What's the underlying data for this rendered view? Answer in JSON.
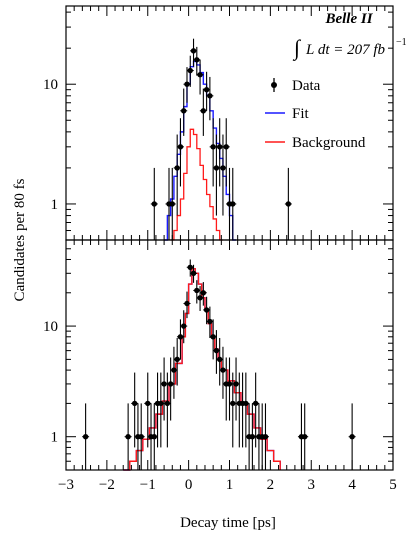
{
  "chart_data": [
    {
      "type": "step",
      "panel": "top",
      "yscale": "log",
      "xlim": [
        -3,
        5
      ],
      "ylim": [
        0.5,
        45
      ],
      "yticks": [
        {
          "v": 1,
          "label": "1"
        },
        {
          "v": 10,
          "label": "10"
        }
      ],
      "experiment": "Belle II",
      "lumi": {
        "integral": "∫",
        "body": "L dt = 207 fb",
        "sup": "−1"
      },
      "legend": [
        {
          "label": "Data",
          "color": "#000000",
          "kind": "marker"
        },
        {
          "label": "Fit",
          "color": "#1a1aff",
          "kind": "line"
        },
        {
          "label": "Background",
          "color": "#ff1a1a",
          "kind": "line"
        }
      ],
      "data_points": [
        {
          "x": -0.84,
          "y": 1.0,
          "lo": 0.5,
          "hi": 2.0
        },
        {
          "x": -0.48,
          "y": 1.0,
          "lo": 0.5,
          "hi": 2.0
        },
        {
          "x": -0.4,
          "y": 1.0,
          "lo": 0.5,
          "hi": 2.0
        },
        {
          "x": -0.28,
          "y": 2.0,
          "lo": 0.8,
          "hi": 3.8
        },
        {
          "x": -0.2,
          "y": 3.0,
          "lo": 1.4,
          "hi": 5.2
        },
        {
          "x": -0.12,
          "y": 6.0,
          "lo": 3.7,
          "hi": 9.2
        },
        {
          "x": -0.04,
          "y": 10.0,
          "lo": 7.0,
          "hi": 13.9
        },
        {
          "x": 0.04,
          "y": 13.0,
          "lo": 9.5,
          "hi": 17.3
        },
        {
          "x": 0.12,
          "y": 19.0,
          "lo": 14.0,
          "hi": 24.0
        },
        {
          "x": 0.2,
          "y": 16.0,
          "lo": 11.8,
          "hi": 20.5
        },
        {
          "x": 0.28,
          "y": 12.0,
          "lo": 8.2,
          "hi": 16.0
        },
        {
          "x": 0.36,
          "y": 6.0,
          "lo": 3.7,
          "hi": 9.2
        },
        {
          "x": 0.44,
          "y": 9.0,
          "lo": 6.0,
          "hi": 12.7
        },
        {
          "x": 0.52,
          "y": 8.0,
          "lo": 5.0,
          "hi": 11.5
        },
        {
          "x": 0.6,
          "y": 3.0,
          "lo": 1.4,
          "hi": 5.2
        },
        {
          "x": 0.68,
          "y": 2.0,
          "lo": 0.8,
          "hi": 3.8
        },
        {
          "x": 0.76,
          "y": 3.0,
          "lo": 1.4,
          "hi": 5.2
        },
        {
          "x": 0.84,
          "y": 2.0,
          "lo": 0.8,
          "hi": 3.8
        },
        {
          "x": 0.92,
          "y": 3.0,
          "lo": 1.4,
          "hi": 5.2
        },
        {
          "x": 1.0,
          "y": 1.0,
          "lo": 0.5,
          "hi": 2.0
        },
        {
          "x": 1.08,
          "y": 1.0,
          "lo": 0.5,
          "hi": 2.0
        },
        {
          "x": 2.44,
          "y": 1.0,
          "lo": 0.5,
          "hi": 2.0
        }
      ],
      "fit_steps": [
        {
          "x0": -0.6,
          "y": 0.5
        },
        {
          "x0": -0.52,
          "y": 0.8
        },
        {
          "x0": -0.44,
          "y": 1.1
        },
        {
          "x0": -0.36,
          "y": 1.7
        },
        {
          "x0": -0.28,
          "y": 2.6
        },
        {
          "x0": -0.2,
          "y": 4.0
        },
        {
          "x0": -0.12,
          "y": 6.5
        },
        {
          "x0": -0.04,
          "y": 10.0
        },
        {
          "x0": 0.04,
          "y": 14.0
        },
        {
          "x0": 0.12,
          "y": 15.5
        },
        {
          "x0": 0.2,
          "y": 14.5
        },
        {
          "x0": 0.28,
          "y": 12.5
        },
        {
          "x0": 0.36,
          "y": 10.0
        },
        {
          "x0": 0.44,
          "y": 8.0
        },
        {
          "x0": 0.52,
          "y": 6.0
        },
        {
          "x0": 0.6,
          "y": 4.3
        },
        {
          "x0": 0.68,
          "y": 3.2
        },
        {
          "x0": 0.76,
          "y": 2.4
        },
        {
          "x0": 0.84,
          "y": 1.7
        },
        {
          "x0": 0.92,
          "y": 1.2
        },
        {
          "x0": 1.0,
          "y": 0.8
        },
        {
          "x0": 1.08,
          "y": 0.5
        }
      ],
      "fit_end": 1.16,
      "bkg_steps": [
        {
          "x0": -0.44,
          "y": 0.5
        },
        {
          "x0": -0.36,
          "y": 0.6
        },
        {
          "x0": -0.28,
          "y": 0.8
        },
        {
          "x0": -0.2,
          "y": 1.1
        },
        {
          "x0": -0.12,
          "y": 1.8
        },
        {
          "x0": -0.04,
          "y": 3.0
        },
        {
          "x0": 0.04,
          "y": 4.2
        },
        {
          "x0": 0.12,
          "y": 3.8
        },
        {
          "x0": 0.2,
          "y": 2.9
        },
        {
          "x0": 0.28,
          "y": 2.1
        },
        {
          "x0": 0.36,
          "y": 1.6
        },
        {
          "x0": 0.44,
          "y": 1.2
        },
        {
          "x0": 0.52,
          "y": 0.95
        },
        {
          "x0": 0.6,
          "y": 0.75
        },
        {
          "x0": 0.68,
          "y": 0.6
        },
        {
          "x0": 0.76,
          "y": 0.5
        }
      ],
      "bkg_end": 0.84
    },
    {
      "type": "step",
      "panel": "bottom",
      "yscale": "log",
      "xlim": [
        -3,
        5
      ],
      "ylim": [
        0.5,
        60
      ],
      "yticks": [
        {
          "v": 1,
          "label": "1"
        },
        {
          "v": 10,
          "label": "10"
        }
      ],
      "xticks": [
        -3,
        -2,
        -1,
        0,
        1,
        2,
        3,
        4,
        5
      ],
      "xtick_labels": [
        "−3",
        "−2",
        "−1",
        "0",
        "1",
        "2",
        "3",
        "4",
        "5"
      ],
      "data_points": [
        {
          "x": -2.52,
          "y": 1.0,
          "lo": 0.5,
          "hi": 2.0
        },
        {
          "x": -1.48,
          "y": 1.0,
          "lo": 0.5,
          "hi": 2.0
        },
        {
          "x": -1.32,
          "y": 2.0,
          "lo": 0.8,
          "hi": 3.8
        },
        {
          "x": -1.24,
          "y": 1.0,
          "lo": 0.5,
          "hi": 2.0
        },
        {
          "x": -1.16,
          "y": 1.0,
          "lo": 0.5,
          "hi": 2.0
        },
        {
          "x": -1.0,
          "y": 2.0,
          "lo": 0.8,
          "hi": 3.8
        },
        {
          "x": -0.92,
          "y": 1.0,
          "lo": 0.5,
          "hi": 2.0
        },
        {
          "x": -0.84,
          "y": 1.0,
          "lo": 0.5,
          "hi": 2.0
        },
        {
          "x": -0.76,
          "y": 2.0,
          "lo": 0.8,
          "hi": 3.8
        },
        {
          "x": -0.68,
          "y": 2.0,
          "lo": 0.8,
          "hi": 3.8
        },
        {
          "x": -0.6,
          "y": 3.0,
          "lo": 1.4,
          "hi": 5.2
        },
        {
          "x": -0.52,
          "y": 2.0,
          "lo": 0.8,
          "hi": 3.8
        },
        {
          "x": -0.44,
          "y": 3.0,
          "lo": 1.4,
          "hi": 5.2
        },
        {
          "x": -0.36,
          "y": 4.0,
          "lo": 2.2,
          "hi": 6.5
        },
        {
          "x": -0.28,
          "y": 5.0,
          "lo": 2.9,
          "hi": 7.8
        },
        {
          "x": -0.2,
          "y": 8.0,
          "lo": 5.0,
          "hi": 11.5
        },
        {
          "x": -0.12,
          "y": 10.0,
          "lo": 7.0,
          "hi": 13.9
        },
        {
          "x": -0.04,
          "y": 16.0,
          "lo": 11.8,
          "hi": 20.5
        },
        {
          "x": 0.04,
          "y": 34.0,
          "lo": 28.0,
          "hi": 40.0
        },
        {
          "x": 0.12,
          "y": 30.0,
          "lo": 24.6,
          "hi": 35.8
        },
        {
          "x": 0.2,
          "y": 21.0,
          "lo": 16.0,
          "hi": 26.0
        },
        {
          "x": 0.28,
          "y": 18.0,
          "lo": 13.7,
          "hi": 23.0
        },
        {
          "x": 0.36,
          "y": 20.0,
          "lo": 15.3,
          "hi": 25.0
        },
        {
          "x": 0.44,
          "y": 14.0,
          "lo": 10.4,
          "hi": 18.4
        },
        {
          "x": 0.52,
          "y": 11.0,
          "lo": 7.8,
          "hi": 15.0
        },
        {
          "x": 0.6,
          "y": 8.0,
          "lo": 5.0,
          "hi": 11.5
        },
        {
          "x": 0.68,
          "y": 6.0,
          "lo": 3.7,
          "hi": 9.2
        },
        {
          "x": 0.76,
          "y": 5.0,
          "lo": 2.9,
          "hi": 7.8
        },
        {
          "x": 0.84,
          "y": 4.0,
          "lo": 2.2,
          "hi": 6.5
        },
        {
          "x": 0.92,
          "y": 3.0,
          "lo": 1.4,
          "hi": 5.2
        },
        {
          "x": 1.0,
          "y": 3.0,
          "lo": 1.4,
          "hi": 5.2
        },
        {
          "x": 1.08,
          "y": 2.0,
          "lo": 0.8,
          "hi": 3.8
        },
        {
          "x": 1.16,
          "y": 3.0,
          "lo": 1.4,
          "hi": 5.2
        },
        {
          "x": 1.24,
          "y": 2.0,
          "lo": 0.8,
          "hi": 3.8
        },
        {
          "x": 1.32,
          "y": 2.0,
          "lo": 0.8,
          "hi": 3.8
        },
        {
          "x": 1.4,
          "y": 2.0,
          "lo": 0.8,
          "hi": 3.8
        },
        {
          "x": 1.48,
          "y": 1.0,
          "lo": 0.5,
          "hi": 2.0
        },
        {
          "x": 1.56,
          "y": 1.0,
          "lo": 0.5,
          "hi": 2.0
        },
        {
          "x": 1.64,
          "y": 2.0,
          "lo": 0.8,
          "hi": 3.8
        },
        {
          "x": 1.72,
          "y": 1.0,
          "lo": 0.5,
          "hi": 2.0
        },
        {
          "x": 1.8,
          "y": 1.0,
          "lo": 0.5,
          "hi": 2.0
        },
        {
          "x": 1.88,
          "y": 1.0,
          "lo": 0.5,
          "hi": 2.0
        },
        {
          "x": 2.76,
          "y": 1.0,
          "lo": 0.5,
          "hi": 2.0
        },
        {
          "x": 2.84,
          "y": 1.0,
          "lo": 0.5,
          "hi": 2.0
        },
        {
          "x": 4.0,
          "y": 1.0,
          "lo": 0.5,
          "hi": 2.0
        }
      ],
      "fit_steps": [
        {
          "x0": -1.6,
          "y": 0.5
        },
        {
          "x0": -1.44,
          "y": 0.6
        },
        {
          "x0": -1.28,
          "y": 0.75
        },
        {
          "x0": -1.12,
          "y": 0.95
        },
        {
          "x0": -0.96,
          "y": 1.2
        },
        {
          "x0": -0.8,
          "y": 1.6
        },
        {
          "x0": -0.64,
          "y": 2.1
        },
        {
          "x0": -0.48,
          "y": 3.0
        },
        {
          "x0": -0.32,
          "y": 4.6
        },
        {
          "x0": -0.16,
          "y": 8.0
        },
        {
          "x0": -0.08,
          "y": 13.0
        },
        {
          "x0": 0.0,
          "y": 24.0
        },
        {
          "x0": 0.08,
          "y": 33.0
        },
        {
          "x0": 0.16,
          "y": 30.0
        },
        {
          "x0": 0.24,
          "y": 24.0
        },
        {
          "x0": 0.32,
          "y": 18.0
        },
        {
          "x0": 0.4,
          "y": 14.0
        },
        {
          "x0": 0.48,
          "y": 10.5
        },
        {
          "x0": 0.56,
          "y": 8.0
        },
        {
          "x0": 0.64,
          "y": 6.2
        },
        {
          "x0": 0.72,
          "y": 5.0
        },
        {
          "x0": 0.8,
          "y": 4.0
        },
        {
          "x0": 0.96,
          "y": 3.2
        },
        {
          "x0": 1.12,
          "y": 2.5
        },
        {
          "x0": 1.28,
          "y": 2.0
        },
        {
          "x0": 1.44,
          "y": 1.6
        },
        {
          "x0": 1.6,
          "y": 1.2
        },
        {
          "x0": 1.76,
          "y": 0.95
        },
        {
          "x0": 1.92,
          "y": 0.75
        },
        {
          "x0": 2.08,
          "y": 0.6
        },
        {
          "x0": 2.24,
          "y": 0.5
        }
      ],
      "fit_end": 2.24,
      "bkg_steps": [
        {
          "x0": -1.6,
          "y": 0.5
        },
        {
          "x0": -1.44,
          "y": 0.6
        },
        {
          "x0": -1.28,
          "y": 0.75
        },
        {
          "x0": -1.12,
          "y": 0.95
        },
        {
          "x0": -0.96,
          "y": 1.2
        },
        {
          "x0": -0.8,
          "y": 1.6
        },
        {
          "x0": -0.64,
          "y": 2.1
        },
        {
          "x0": -0.48,
          "y": 3.0
        },
        {
          "x0": -0.32,
          "y": 4.6
        },
        {
          "x0": -0.16,
          "y": 8.0
        },
        {
          "x0": -0.08,
          "y": 13.0
        },
        {
          "x0": 0.0,
          "y": 24.0
        },
        {
          "x0": 0.08,
          "y": 33.0
        },
        {
          "x0": 0.16,
          "y": 30.0
        },
        {
          "x0": 0.24,
          "y": 24.0
        },
        {
          "x0": 0.32,
          "y": 18.0
        },
        {
          "x0": 0.4,
          "y": 14.0
        },
        {
          "x0": 0.48,
          "y": 10.5
        },
        {
          "x0": 0.56,
          "y": 8.0
        },
        {
          "x0": 0.64,
          "y": 6.2
        },
        {
          "x0": 0.72,
          "y": 5.0
        },
        {
          "x0": 0.8,
          "y": 4.0
        },
        {
          "x0": 0.96,
          "y": 3.2
        },
        {
          "x0": 1.12,
          "y": 2.5
        },
        {
          "x0": 1.28,
          "y": 2.0
        },
        {
          "x0": 1.44,
          "y": 1.6
        },
        {
          "x0": 1.6,
          "y": 1.2
        },
        {
          "x0": 1.76,
          "y": 0.95
        },
        {
          "x0": 1.92,
          "y": 0.75
        },
        {
          "x0": 2.08,
          "y": 0.6
        },
        {
          "x0": 2.24,
          "y": 0.5
        }
      ],
      "bkg_end": 2.24,
      "xlabel": "Decay time [ps]"
    }
  ],
  "ylabel": "Candidates per 80 fs"
}
